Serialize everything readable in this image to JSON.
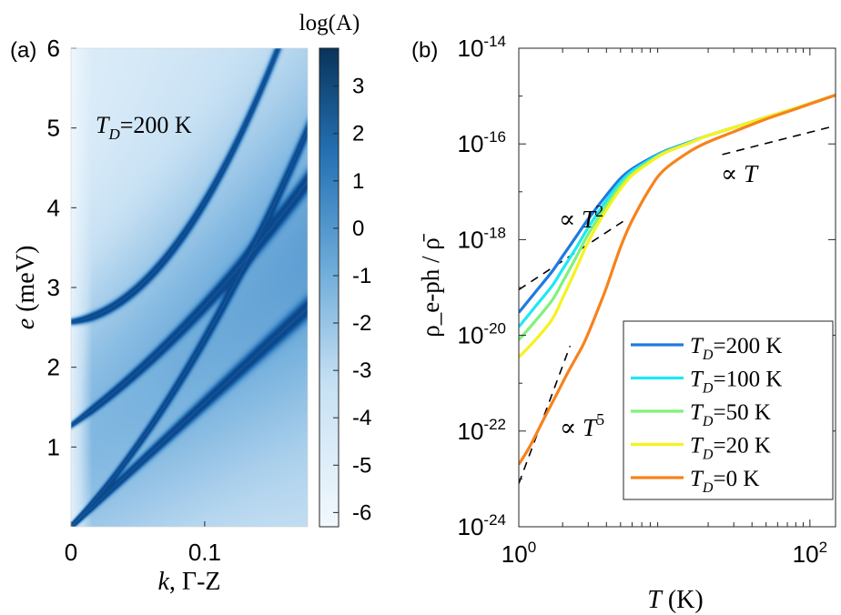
{
  "chart_data": [
    {
      "type": "heatmap",
      "panel_label": "(a)",
      "annotation": {
        "var": "T",
        "sub": "D",
        "rest": "=200 K"
      },
      "xlabel": {
        "var": "k",
        "rest": ", Γ-Z"
      },
      "ylabel": {
        "var": "e",
        "rest": " (meV)"
      },
      "xlim": [
        0,
        0.177
      ],
      "ylim": [
        0,
        6
      ],
      "xticks": [
        {
          "v": 0,
          "label": "0"
        },
        {
          "v": 0.1,
          "label": "0.1"
        }
      ],
      "yticks": [
        {
          "v": 1,
          "label": "1"
        },
        {
          "v": 2,
          "label": "2"
        },
        {
          "v": 3,
          "label": "3"
        },
        {
          "v": 4,
          "label": "4"
        },
        {
          "v": 5,
          "label": "5"
        },
        {
          "v": 6,
          "label": "6"
        }
      ],
      "bands": [
        {
          "name": "acoustic-1",
          "e0": 0,
          "slope": 15.5,
          "curve": 0,
          "peak": 0.9
        },
        {
          "name": "acoustic-2",
          "e0": 0,
          "slope": 17.5,
          "curve": 60,
          "peak": 0.9
        },
        {
          "name": "optical-1",
          "e0": 1.27,
          "slope": 12.0,
          "curve": 30,
          "peak": 1.0
        },
        {
          "name": "optical-2",
          "e0": 2.57,
          "slope": 2.0,
          "curve": 130,
          "peak": 1.0
        }
      ],
      "colorbar": {
        "title": "log(A)",
        "range": [
          -6.3,
          3.8
        ],
        "ticks": [
          3,
          2,
          1,
          0,
          -1,
          -2,
          -3,
          -4,
          -5,
          -6
        ],
        "tick_labels": [
          "3",
          "2",
          "1",
          "0",
          "-1",
          "-2",
          "-3",
          "-4",
          "-5",
          "-6"
        ],
        "color_low": "#f2f9fe",
        "color_high": "#08345a"
      }
    },
    {
      "type": "line",
      "panel_label": "(b)",
      "xscale": "log",
      "yscale": "log",
      "xlim": [
        1,
        150
      ],
      "ylim": [
        1e-24,
        1e-14
      ],
      "xlabel": {
        "var": "T",
        "rest": " (K)"
      },
      "ylabel": "ρ_e-ph / ρ̄",
      "xticks": [
        {
          "v": 1,
          "base": "10",
          "exp": "0"
        },
        {
          "v": 100,
          "base": "10",
          "exp": "2"
        }
      ],
      "yticks": [
        {
          "v": 1e-14,
          "base": "10",
          "exp": "-14"
        },
        {
          "v": 1e-16,
          "base": "10",
          "exp": "-16"
        },
        {
          "v": 1e-18,
          "base": "10",
          "exp": "-18"
        },
        {
          "v": 1e-20,
          "base": "10",
          "exp": "-20"
        },
        {
          "v": 1e-22,
          "base": "10",
          "exp": "-22"
        },
        {
          "v": 1e-24,
          "base": "10",
          "exp": "-24"
        }
      ],
      "series": [
        {
          "name": "T_D=200 K",
          "label": {
            "var": "T",
            "sub": "D",
            "rest": "=200 K"
          },
          "color": "#1f7ae0",
          "x": [
            1,
            1.3,
            1.7,
            2,
            2.5,
            3,
            4,
            5,
            6,
            8,
            10,
            15,
            20,
            30,
            50,
            80,
            150
          ],
          "y": [
            3e-20,
            8e-20,
            2.2e-19,
            4.5e-19,
            1.2e-18,
            2.7e-18,
            8.5e-18,
            1.9e-17,
            3e-17,
            5e-17,
            7e-17,
            1.1e-16,
            1.5e-16,
            2.2e-16,
            3.6e-16,
            5.6e-16,
            1.05e-15
          ]
        },
        {
          "name": "T_D=100 K",
          "label": {
            "var": "T",
            "sub": "D",
            "rest": "=100 K"
          },
          "color": "#1ee8f4",
          "x": [
            1,
            1.3,
            1.7,
            2,
            2.5,
            3,
            4,
            5,
            6,
            8,
            10,
            15,
            20,
            30,
            50,
            80,
            150
          ],
          "y": [
            1.5e-20,
            4e-20,
            1.1e-19,
            2.4e-19,
            7e-19,
            1.8e-18,
            6.6e-18,
            1.6e-17,
            2.7e-17,
            4.7e-17,
            6.8e-17,
            1.08e-16,
            1.5e-16,
            2.2e-16,
            3.6e-16,
            5.6e-16,
            1.05e-15
          ]
        },
        {
          "name": "T_D=50 K",
          "label": {
            "var": "T",
            "sub": "D",
            "rest": "=50 K"
          },
          "color": "#7ff27a",
          "x": [
            1,
            1.3,
            1.7,
            2,
            2.5,
            3,
            4,
            5,
            6,
            8,
            10,
            15,
            20,
            30,
            50,
            80,
            150
          ],
          "y": [
            8e-21,
            2e-20,
            5.5e-20,
            1.3e-19,
            4.5e-19,
            1.3e-18,
            5.2e-18,
            1.35e-17,
            2.4e-17,
            4.4e-17,
            6.6e-17,
            1.06e-16,
            1.5e-16,
            2.2e-16,
            3.6e-16,
            5.6e-16,
            1.05e-15
          ]
        },
        {
          "name": "T_D=20 K",
          "label": {
            "var": "T",
            "sub": "D",
            "rest": "=20 K"
          },
          "color": "#f6f21f",
          "x": [
            1,
            1.3,
            1.7,
            2,
            2.5,
            3,
            4,
            5,
            6,
            8,
            10,
            15,
            20,
            30,
            50,
            80,
            150
          ],
          "y": [
            3.5e-21,
            8e-21,
            2.2e-20,
            6e-20,
            2.6e-19,
            9e-19,
            4.2e-18,
            1.15e-17,
            2.2e-17,
            4.2e-17,
            6.4e-17,
            1.05e-16,
            1.5e-16,
            2.2e-16,
            3.6e-16,
            5.6e-16,
            1.05e-15
          ]
        },
        {
          "name": "T_D=0 K",
          "label": {
            "var": "T",
            "sub": "D",
            "rest": "=0 K"
          },
          "color": "#f7821c",
          "x": [
            1,
            1.2,
            1.5,
            1.8,
            2.2,
            2.7,
            3,
            3.5,
            4,
            5,
            6,
            8,
            10,
            15,
            20,
            30,
            50,
            80,
            150
          ],
          "y": [
            2e-23,
            5e-23,
            1.9e-22,
            5.5e-22,
            1.8e-21,
            5.5e-21,
            1.1e-20,
            3.5e-20,
            1e-19,
            7e-19,
            2.5e-18,
            1.2e-17,
            2.9e-17,
            7e-17,
            1.1e-16,
            1.8e-16,
            3.3e-16,
            5.4e-16,
            1.05e-15
          ]
        }
      ],
      "guides": [
        {
          "name": "T2",
          "label": {
            "base": "∝ ",
            "var": "T",
            "exp": "2"
          },
          "x": [
            1,
            5.2
          ],
          "y": [
            9e-20,
            2.4e-18
          ]
        },
        {
          "name": "T1",
          "label": {
            "base": "∝ ",
            "var": "T",
            "exp": ""
          },
          "x": [
            25,
            150
          ],
          "y": [
            6e-17,
            2.4e-16
          ]
        },
        {
          "name": "T5",
          "label": {
            "base": "∝ ",
            "var": "T",
            "exp": "5"
          },
          "x": [
            1,
            2.25
          ],
          "y": [
            8e-24,
            6e-21
          ]
        }
      ],
      "legend": {
        "position": "bottom-right"
      }
    }
  ]
}
